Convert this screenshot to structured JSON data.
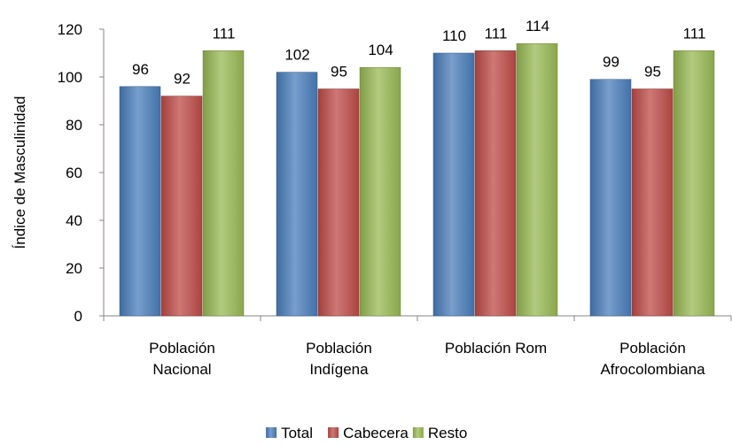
{
  "chart_data": {
    "type": "bar",
    "categories": [
      [
        "Población",
        "Nacional"
      ],
      [
        "Población",
        "Indígena"
      ],
      [
        "Población Rom"
      ],
      [
        "Población",
        "Afrocolombiana"
      ]
    ],
    "series": [
      {
        "name": "Total",
        "values": [
          96,
          102,
          110,
          99
        ],
        "color": "#4a7ebb"
      },
      {
        "name": "Cabecera",
        "values": [
          92,
          95,
          111,
          95
        ],
        "color": "#be4b48"
      },
      {
        "name": "Resto",
        "values": [
          111,
          104,
          114,
          111
        ],
        "color": "#98b954"
      }
    ],
    "ylabel": "Índice de Masculinidad",
    "ylim": [
      0,
      120
    ],
    "yticks": [
      0,
      20,
      40,
      60,
      80,
      100,
      120
    ],
    "grid": false,
    "legend_position": "bottom"
  }
}
